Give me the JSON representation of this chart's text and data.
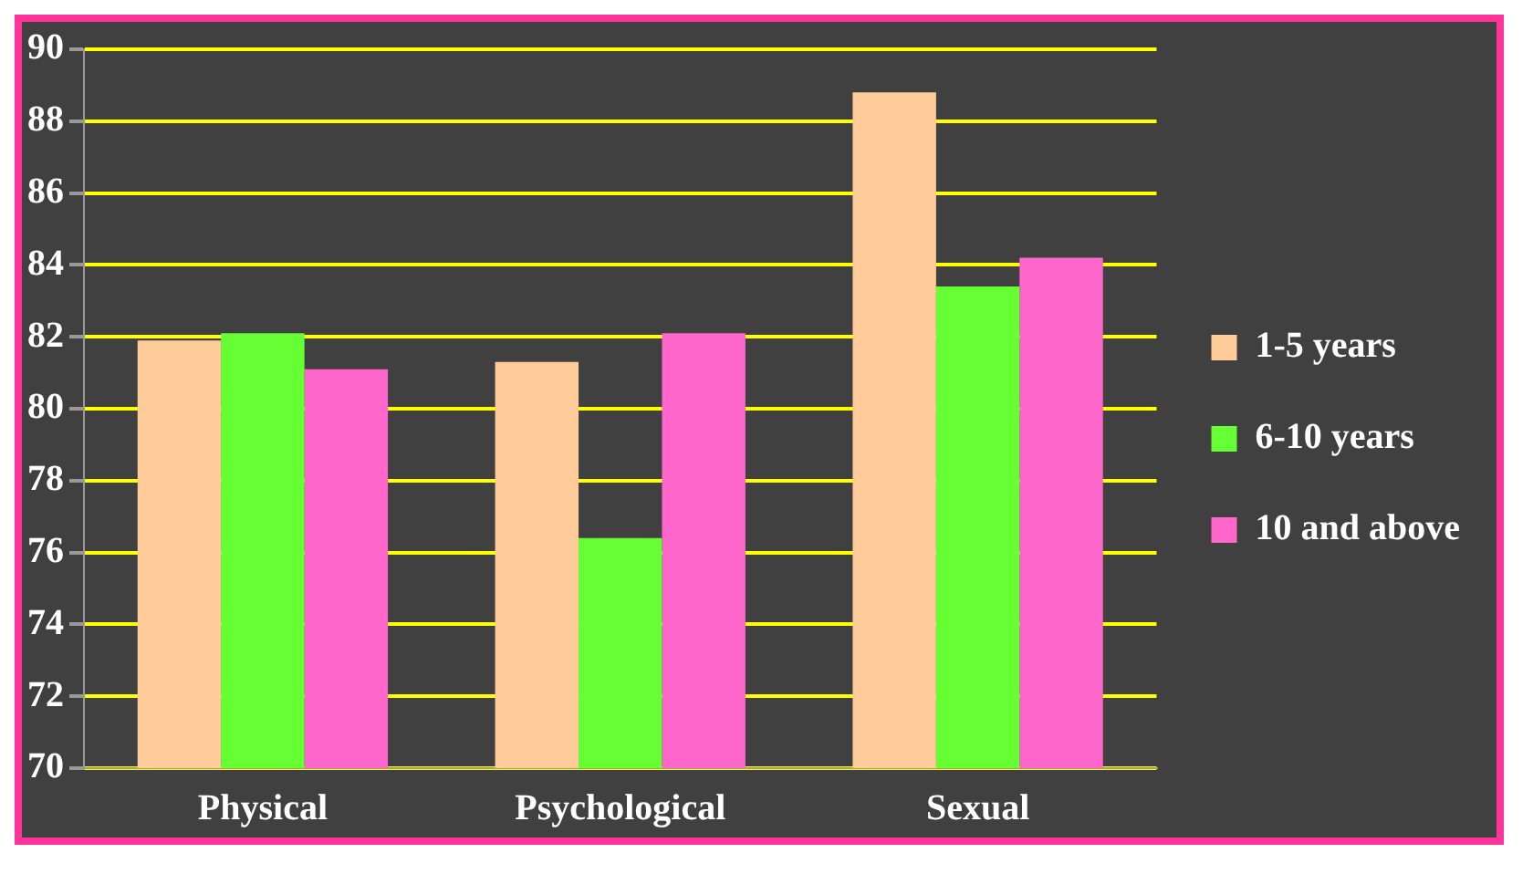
{
  "chart_data": {
    "type": "bar",
    "categories": [
      "Physical",
      "Psychological",
      "Sexual"
    ],
    "series": [
      {
        "name": "1-5 years",
        "color": "#ffcc99",
        "values": [
          81.9,
          81.3,
          88.8
        ]
      },
      {
        "name": "6-10 years",
        "color": "#66ff33",
        "values": [
          82.1,
          76.4,
          83.4
        ]
      },
      {
        "name": "10 and above",
        "color": "#ff66cc",
        "values": [
          81.1,
          82.1,
          84.2
        ]
      }
    ],
    "ylim": [
      70,
      90
    ],
    "yticks": [
      70,
      72,
      74,
      76,
      78,
      80,
      82,
      84,
      86,
      88,
      90
    ],
    "grid": "y",
    "legend": "right"
  }
}
